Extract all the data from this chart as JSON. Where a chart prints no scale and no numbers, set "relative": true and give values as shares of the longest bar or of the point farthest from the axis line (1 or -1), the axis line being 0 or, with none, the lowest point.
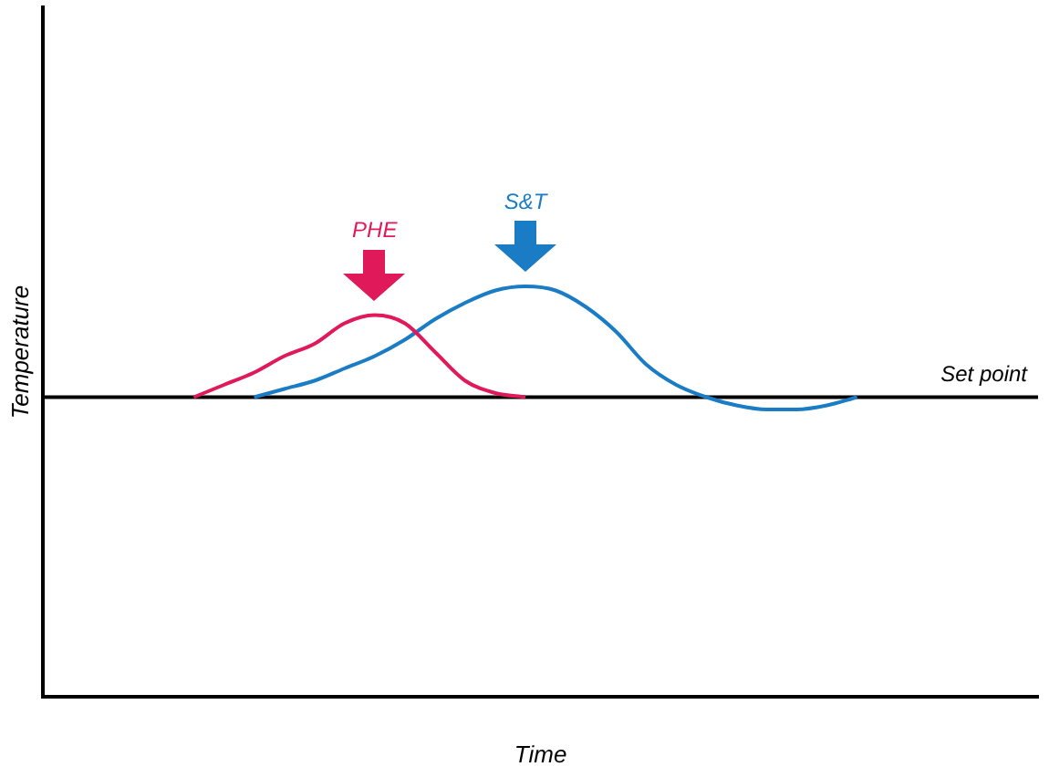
{
  "chart_data": {
    "type": "line",
    "relative": true,
    "xlabel": "Time",
    "ylabel": "Temperature",
    "categories": [
      null,
      null,
      null,
      null,
      null,
      null,
      null,
      null,
      null,
      null,
      null,
      null,
      null,
      null,
      null,
      null,
      null,
      null,
      null,
      null,
      null,
      null,
      null,
      null,
      null,
      null,
      null,
      null,
      null,
      null,
      null,
      null,
      null,
      null
    ],
    "series": [
      {
        "name": "PHE",
        "color": "#e0195a",
        "values": [
          null,
          null,
          null,
          null,
          null,
          0.73,
          0.76,
          0.79,
          0.83,
          0.86,
          0.91,
          0.93,
          0.91,
          0.84,
          0.77,
          0.74,
          0.73,
          null,
          null,
          null,
          null,
          null,
          null,
          null,
          null,
          null,
          null,
          null,
          null,
          null,
          null,
          null,
          null,
          null
        ]
      },
      {
        "name": "S&T",
        "color": "#1a7cc4",
        "values": [
          null,
          null,
          null,
          null,
          null,
          null,
          null,
          0.73,
          0.75,
          0.77,
          0.8,
          0.83,
          0.87,
          0.92,
          0.96,
          0.99,
          1,
          0.99,
          0.95,
          0.89,
          0.81,
          0.76,
          0.73,
          0.71,
          0.7,
          0.7,
          0.71,
          0.73,
          null,
          null,
          null,
          null,
          null,
          null
        ]
      }
    ],
    "ref_lines": [
      {
        "axis": "y",
        "value": 0.73,
        "label": "Set point",
        "color": "#000000"
      }
    ],
    "legend": false,
    "grid": false,
    "marker": "none",
    "line_style": "solid"
  }
}
